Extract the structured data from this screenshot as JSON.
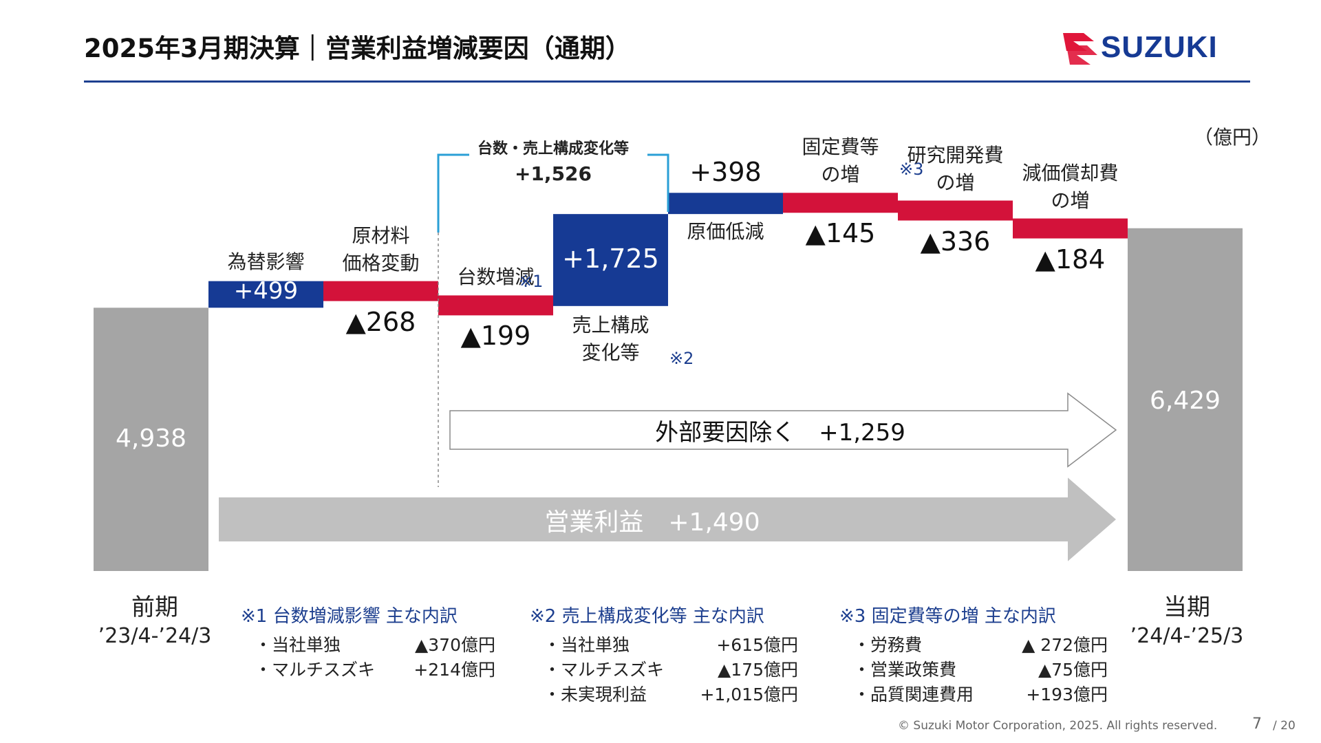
{
  "header": {
    "title": "2025年3月期決算｜営業利益増減要因（通期）",
    "brand": "SUZUKI"
  },
  "unit": "（億円）",
  "chart_data": {
    "type": "waterfall",
    "steps": [
      {
        "label": "前期",
        "value": 4938,
        "kind": "total",
        "value_text": "4,938"
      },
      {
        "label": "為替影響",
        "value": 499,
        "kind": "delta",
        "value_text": "+499"
      },
      {
        "label": "原材料 価格変動",
        "value": -268,
        "kind": "delta",
        "value_text": "▲268"
      },
      {
        "label": "台数増減",
        "value": -199,
        "kind": "delta",
        "value_text": "▲199",
        "note_ref": "※1"
      },
      {
        "label": "売上構成 変化等",
        "value": 1725,
        "kind": "delta",
        "value_text": "+1,725",
        "note_ref": "※2"
      },
      {
        "label": "原価低減",
        "value": 398,
        "kind": "delta",
        "value_text": "+398"
      },
      {
        "label": "固定費等 の増",
        "value": -145,
        "kind": "delta",
        "value_text": "▲145",
        "note_ref": "※3"
      },
      {
        "label": "研究開発費 の増",
        "value": -336,
        "kind": "delta",
        "value_text": "▲336"
      },
      {
        "label": "減価償却費 の増",
        "value": -184,
        "kind": "delta",
        "value_text": "▲184"
      },
      {
        "label": "当期",
        "value": 6429,
        "kind": "total",
        "value_text": "6,429"
      }
    ],
    "bracket": {
      "label": "台数・売上構成変化等",
      "value_text": "+1,526"
    },
    "arrows": [
      {
        "label": "外部要因除く",
        "value_text": "+1,259"
      },
      {
        "label": "営業利益",
        "value_text": "+1,490"
      }
    ],
    "colors": {
      "positive": "#163a94",
      "negative": "#d3123a",
      "total": "#a5a5a5",
      "arrow_gray": "#c0c0c0"
    }
  },
  "periods": {
    "prev": {
      "name": "前期",
      "range": "’23/4-’24/3"
    },
    "curr": {
      "name": "当期",
      "range": "’24/4-’25/3"
    }
  },
  "notes": [
    {
      "title": "※1 台数増減影響 主な内訳",
      "rows": [
        [
          "・当社単独",
          "▲370億円"
        ],
        [
          "・マルチスズキ",
          "+214億円"
        ]
      ]
    },
    {
      "title": "※2 売上構成変化等 主な内訳",
      "rows": [
        [
          "・当社単独",
          "+615億円"
        ],
        [
          "・マルチスズキ",
          "▲175億円"
        ],
        [
          "・未実現利益",
          "+1,015億円"
        ]
      ]
    },
    {
      "title": "※3 固定費等の増 主な内訳",
      "rows": [
        [
          "・労務費",
          "▲ 272億円"
        ],
        [
          "・営業政策費",
          "▲75億円"
        ],
        [
          "・品質関連費用",
          "+193億円"
        ]
      ]
    }
  ],
  "footer": {
    "copyright": "© Suzuki Motor Corporation, 2025. All rights reserved.",
    "page": "7",
    "total": "/ 20"
  }
}
